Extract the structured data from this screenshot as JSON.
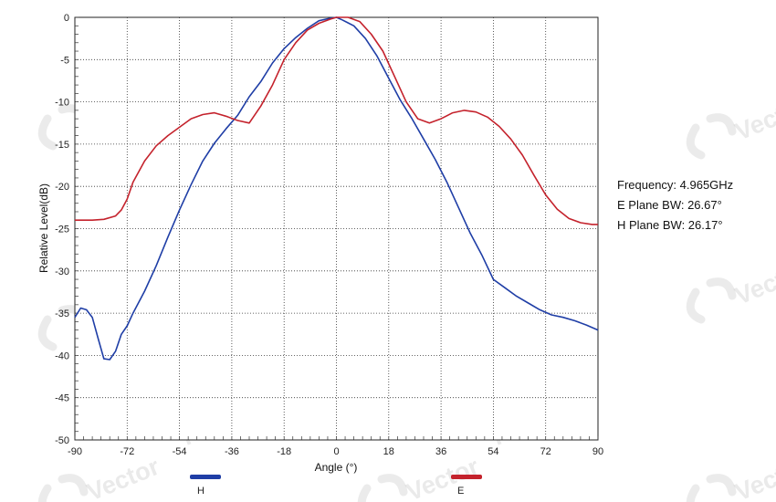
{
  "watermark": {
    "text": "Vector Telecom"
  },
  "info": {
    "frequency": "Frequency: 4.965GHz",
    "e_bw": "E Plane BW: 26.67°",
    "h_bw": "H Plane BW: 26.17°"
  },
  "colors": {
    "H": "#1f3ea6",
    "E": "#c4222c",
    "grid": "#333333"
  },
  "chart_data": {
    "type": "line",
    "title": "",
    "xlabel": "Angle (°)",
    "ylabel": "Relative Level(dB)",
    "xlim": [
      -90,
      90
    ],
    "ylim": [
      -50,
      0
    ],
    "xticks": [
      -90,
      -72,
      -54,
      -36,
      -18,
      0,
      18,
      36,
      54,
      72,
      90
    ],
    "yticks": [
      0,
      -5,
      -10,
      -15,
      -20,
      -25,
      -30,
      -35,
      -40,
      -45,
      -50
    ],
    "grid": true,
    "legend": "bottom",
    "series": [
      {
        "name": "H",
        "color": "#1f3ea6",
        "x": [
          -90,
          -88,
          -86,
          -84,
          -82,
          -80,
          -78,
          -76,
          -74,
          -72,
          -70,
          -66,
          -62,
          -58,
          -54,
          -50,
          -46,
          -42,
          -38,
          -34,
          -30,
          -26,
          -22,
          -18,
          -14,
          -10,
          -6,
          -2,
          0,
          2,
          6,
          10,
          14,
          18,
          22,
          26,
          30,
          34,
          38,
          42,
          46,
          50,
          54,
          58,
          62,
          66,
          70,
          74,
          78,
          82,
          86,
          90
        ],
        "y": [
          -35.5,
          -34.4,
          -34.6,
          -35.5,
          -38.0,
          -40.4,
          -40.5,
          -39.5,
          -37.5,
          -36.5,
          -35.0,
          -32.4,
          -29.4,
          -26.0,
          -22.8,
          -19.8,
          -17.0,
          -14.9,
          -13.2,
          -11.6,
          -9.4,
          -7.6,
          -5.4,
          -3.7,
          -2.4,
          -1.3,
          -0.4,
          -0.1,
          0.0,
          -0.3,
          -1.0,
          -2.5,
          -4.6,
          -7.2,
          -9.8,
          -12.0,
          -14.4,
          -16.8,
          -19.5,
          -22.5,
          -25.5,
          -28.1,
          -31.0,
          -32.0,
          -33.0,
          -33.8,
          -34.6,
          -35.2,
          -35.5,
          -35.9,
          -36.4,
          -37.0
        ]
      },
      {
        "name": "E",
        "color": "#c4222c",
        "x": [
          -90,
          -84,
          -80,
          -76,
          -74,
          -72,
          -70,
          -66,
          -62,
          -58,
          -54,
          -50,
          -46,
          -42,
          -38,
          -34,
          -30,
          -26,
          -22,
          -18,
          -14,
          -10,
          -6,
          -2,
          0,
          2,
          4,
          8,
          12,
          16,
          20,
          24,
          28,
          32,
          36,
          40,
          44,
          48,
          52,
          56,
          60,
          64,
          68,
          72,
          76,
          80,
          84,
          88,
          90
        ],
        "y": [
          -24.0,
          -24.0,
          -23.9,
          -23.5,
          -22.8,
          -21.5,
          -19.5,
          -17.0,
          -15.2,
          -14.0,
          -13.0,
          -12.0,
          -11.5,
          -11.3,
          -11.7,
          -12.2,
          -12.5,
          -10.5,
          -8.0,
          -5.0,
          -3.0,
          -1.5,
          -0.7,
          -0.2,
          0.0,
          0.0,
          0.0,
          -0.5,
          -2.0,
          -4.0,
          -7.0,
          -10.0,
          -12.0,
          -12.5,
          -12.0,
          -11.3,
          -11.0,
          -11.2,
          -11.8,
          -12.9,
          -14.4,
          -16.3,
          -18.7,
          -21.0,
          -22.7,
          -23.8,
          -24.3,
          -24.5,
          -24.5
        ]
      }
    ]
  }
}
